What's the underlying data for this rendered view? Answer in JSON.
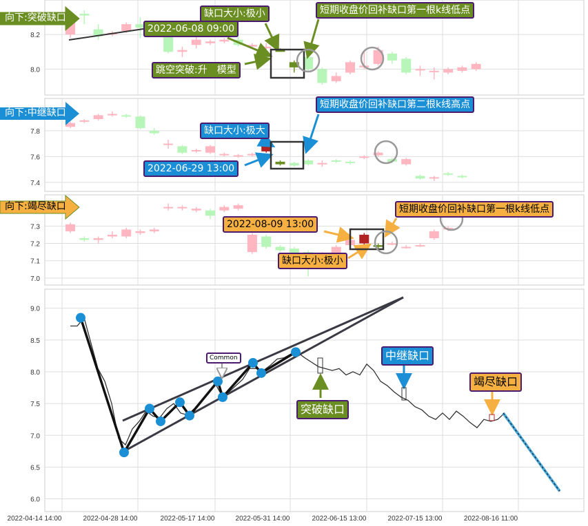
{
  "colors": {
    "up": "#ffb6c1",
    "down": "#b8f5b8",
    "gap_up": "#b22222",
    "gap_down": "#6b8e23",
    "olive": "#6b8e23",
    "blue": "#1a8fd6",
    "orange": "#f5b041",
    "point": "#1a8fd6",
    "line": "#333333"
  },
  "chart_data": [
    {
      "type": "candlestick",
      "yticks": [
        8.0,
        8.2
      ],
      "ylim": [
        7.85,
        8.4
      ],
      "candles": [
        [
          8.2,
          8.3,
          8.32,
          8.18
        ],
        [
          8.32,
          8.31,
          8.34,
          8.26
        ],
        [
          8.23,
          8.19,
          8.26,
          8.17
        ],
        [
          8.2,
          8.21,
          8.22,
          8.19
        ],
        [
          8.22,
          8.26,
          8.27,
          8.21
        ],
        [
          8.26,
          8.24,
          8.3,
          8.18
        ],
        [
          8.24,
          8.25,
          8.27,
          8.2
        ],
        [
          8.19,
          8.1,
          8.22,
          8.09
        ],
        [
          8.1,
          8.11,
          8.13,
          8.07
        ],
        [
          8.14,
          8.17,
          8.19,
          8.12
        ],
        [
          8.15,
          8.16,
          8.17,
          8.14
        ],
        [
          8.16,
          8.17,
          8.18,
          8.15
        ],
        [
          8.17,
          8.14,
          8.2,
          8.13
        ],
        [
          8.13,
          8.14,
          8.15,
          8.12
        ],
        [
          8.12,
          8.13,
          8.15,
          8.11
        ],
        [
          8.11,
          8.1,
          8.12,
          8.1,
          "gap"
        ],
        [
          8.04,
          8.01,
          8.05,
          7.98,
          "gap"
        ],
        [
          8.07,
          8.0,
          8.08,
          7.99
        ],
        [
          8.0,
          7.92,
          8.01,
          7.91
        ],
        [
          7.93,
          7.96,
          7.98,
          7.92
        ],
        [
          7.98,
          8.04,
          8.05,
          7.97
        ],
        [
          8.01,
          8.02,
          8.1,
          8.0
        ],
        [
          8.03,
          8.11,
          8.13,
          8.02
        ],
        [
          8.09,
          8.05,
          8.1,
          8.03
        ],
        [
          8.06,
          7.98,
          8.07,
          7.97
        ],
        [
          8.0,
          8.0,
          8.02,
          7.96
        ],
        [
          7.99,
          7.99,
          8.01,
          7.94
        ],
        [
          7.98,
          8.0,
          8.01,
          7.97
        ],
        [
          7.99,
          8.01,
          8.02,
          7.98
        ],
        [
          8.0,
          8.03,
          8.04,
          7.99
        ]
      ]
    },
    {
      "type": "candlestick",
      "yticks": [
        7.4,
        7.6,
        7.8
      ],
      "ylim": [
        7.33,
        8.05
      ],
      "candles": [
        [
          7.83,
          7.86,
          7.87,
          7.82
        ],
        [
          7.87,
          7.88,
          7.89,
          7.86
        ],
        [
          7.89,
          7.92,
          7.93,
          7.88
        ],
        [
          7.92,
          7.93,
          7.95,
          7.91
        ],
        [
          7.92,
          7.91,
          7.93,
          7.9
        ],
        [
          7.91,
          7.82,
          7.92,
          7.81
        ],
        [
          7.8,
          7.78,
          7.82,
          7.77
        ],
        [
          7.7,
          7.7,
          7.73,
          7.66
        ],
        [
          7.68,
          7.63,
          7.69,
          7.62
        ],
        [
          7.64,
          7.65,
          7.66,
          7.63
        ],
        [
          7.63,
          7.68,
          7.69,
          7.62
        ],
        [
          7.62,
          7.62,
          7.63,
          7.6
        ],
        [
          7.61,
          7.61,
          7.62,
          7.59
        ],
        [
          7.61,
          7.62,
          7.63,
          7.6
        ],
        [
          7.64,
          7.68,
          7.7,
          7.63,
          "gap"
        ],
        [
          7.56,
          7.54,
          7.57,
          7.53,
          "gap"
        ],
        [
          7.55,
          7.53,
          7.56,
          7.52
        ],
        [
          7.57,
          7.54,
          7.58,
          7.53
        ],
        [
          7.55,
          7.55,
          7.57,
          7.52
        ],
        [
          7.57,
          7.56,
          7.58,
          7.55
        ],
        [
          7.56,
          7.55,
          7.57,
          7.54
        ],
        [
          7.59,
          7.6,
          7.61,
          7.58
        ],
        [
          7.61,
          7.63,
          7.64,
          7.6
        ],
        [
          7.58,
          7.56,
          7.59,
          7.55
        ],
        [
          7.54,
          7.58,
          7.59,
          7.53
        ],
        [
          7.45,
          7.43,
          7.46,
          7.42
        ],
        [
          7.43,
          7.44,
          7.45,
          7.41
        ],
        [
          7.47,
          7.46,
          7.48,
          7.45
        ],
        [
          7.45,
          7.44,
          7.46,
          7.43
        ]
      ]
    },
    {
      "type": "candlestick",
      "yticks": [
        7.0,
        7.1,
        7.2,
        7.3
      ],
      "ylim": [
        6.96,
        7.48
      ],
      "candles": [
        [
          7.27,
          7.31,
          7.32,
          7.26
        ],
        [
          7.23,
          7.22,
          7.24,
          7.21
        ],
        [
          7.22,
          7.23,
          7.24,
          7.2
        ],
        [
          7.24,
          7.25,
          7.27,
          7.23
        ],
        [
          7.24,
          7.28,
          7.29,
          7.23
        ],
        [
          7.26,
          7.27,
          7.28,
          7.25
        ],
        [
          7.27,
          7.28,
          7.29,
          7.26
        ],
        [
          7.41,
          7.41,
          7.43,
          7.39
        ],
        [
          7.41,
          7.41,
          7.42,
          7.39
        ],
        [
          7.39,
          7.4,
          7.41,
          7.38
        ],
        [
          7.39,
          7.36,
          7.4,
          7.34
        ],
        [
          7.39,
          7.41,
          7.42,
          7.38
        ],
        [
          7.4,
          7.42,
          7.43,
          7.39
        ],
        [
          7.15,
          7.25,
          7.26,
          7.14
        ],
        [
          7.24,
          7.18,
          7.25,
          7.17
        ],
        [
          7.18,
          7.16,
          7.19,
          7.15
        ],
        [
          7.17,
          7.12,
          7.18,
          7.11
        ],
        [
          7.15,
          7.13,
          7.16,
          7.01
        ],
        [
          7.13,
          7.14,
          7.15,
          7.12
        ],
        [
          7.14,
          7.18,
          7.19,
          7.13
        ],
        [
          7.19,
          7.22,
          7.23,
          7.18
        ],
        [
          7.2,
          7.25,
          7.26,
          7.19,
          "gap"
        ],
        [
          7.19,
          7.18,
          7.2,
          7.17,
          "gap"
        ],
        [
          7.2,
          7.2,
          7.21,
          7.19
        ],
        [
          7.18,
          7.18,
          7.19,
          7.17
        ],
        [
          7.19,
          7.19,
          7.2,
          7.18
        ],
        [
          7.23,
          7.27,
          7.28,
          7.22
        ],
        [
          7.28,
          7.29,
          7.3,
          7.27
        ]
      ]
    },
    {
      "type": "line",
      "yticks": [
        6.0,
        6.5,
        7.0,
        7.5,
        8.0,
        8.5,
        9.0
      ],
      "ylim": [
        5.8,
        9.3
      ],
      "xticks": [
        "2022-04-14 14:00",
        "2022-04-28 14:00",
        "2022-05-17 14:00",
        "2022-05-31 14:00",
        "2022-06-15 13:00",
        "2022-07-15 13:00",
        "2022-08-16 11:00"
      ],
      "values": [
        8.72,
        8.72,
        8.85,
        8.45,
        8.05,
        7.85,
        7.5,
        6.95,
        6.85,
        7.1,
        7.22,
        7.38,
        7.3,
        7.28,
        7.42,
        7.5,
        7.35,
        7.32,
        7.42,
        7.55,
        7.65,
        7.82,
        7.62,
        7.68,
        7.78,
        7.88,
        8.05,
        8.05,
        8.02,
        8.1,
        8.2,
        8.22,
        8.28,
        8.3,
        8.22,
        8.15,
        8.08,
        8.05,
        8.02,
        8.05,
        7.95,
        8.0,
        7.95,
        8.12,
        8.02,
        7.85,
        7.78,
        7.68,
        7.6,
        7.55,
        7.45,
        7.4,
        7.3,
        7.25,
        7.35,
        7.25,
        7.38,
        7.3,
        7.2,
        7.12,
        7.25,
        7.22,
        7.25,
        7.35
      ],
      "pivots": [
        [
          1.5,
          8.85
        ],
        [
          7.8,
          6.73
        ],
        [
          11.5,
          7.42
        ],
        [
          13.1,
          7.22
        ],
        [
          15.9,
          7.52
        ],
        [
          17.3,
          7.31
        ],
        [
          21.4,
          7.85
        ],
        [
          22.1,
          7.6
        ],
        [
          26.5,
          8.14
        ],
        [
          27.7,
          7.98
        ],
        [
          32.7,
          8.31
        ]
      ],
      "trendlines": [
        [
          [
            7.6,
            7.23
          ],
          [
            48.3,
            9.17
          ]
        ],
        [
          [
            7.8,
            6.75
          ],
          [
            48.3,
            9.17
          ]
        ]
      ],
      "projection": [
        [
          62.8,
          7.35
        ],
        [
          71,
          6.12
        ]
      ]
    }
  ],
  "panel1": {
    "title": "向下:突破缺口",
    "date": "2022-06-08 09:00",
    "gap_size": "缺口大小:极小",
    "fill": "短期收盘价回补缺口第一根k线低点",
    "model": "跳空突破:升　模型"
  },
  "panel2": {
    "title": "向下:中继缺口",
    "date": "2022-06-29 13:00",
    "gap_size": "缺口大小:极大",
    "fill": "短期收盘价回补缺口第二根k线高点"
  },
  "panel3": {
    "title": "向下:竭尽缺口",
    "date": "2022-08-09 13:00",
    "gap_size": "缺口大小:极小",
    "fill": "短期收盘价回补缺口第一根k线低点"
  },
  "main": {
    "common": "Common",
    "breakaway": "突破缺口",
    "runaway": "中继缺口",
    "exhaustion": "竭尽缺口"
  }
}
